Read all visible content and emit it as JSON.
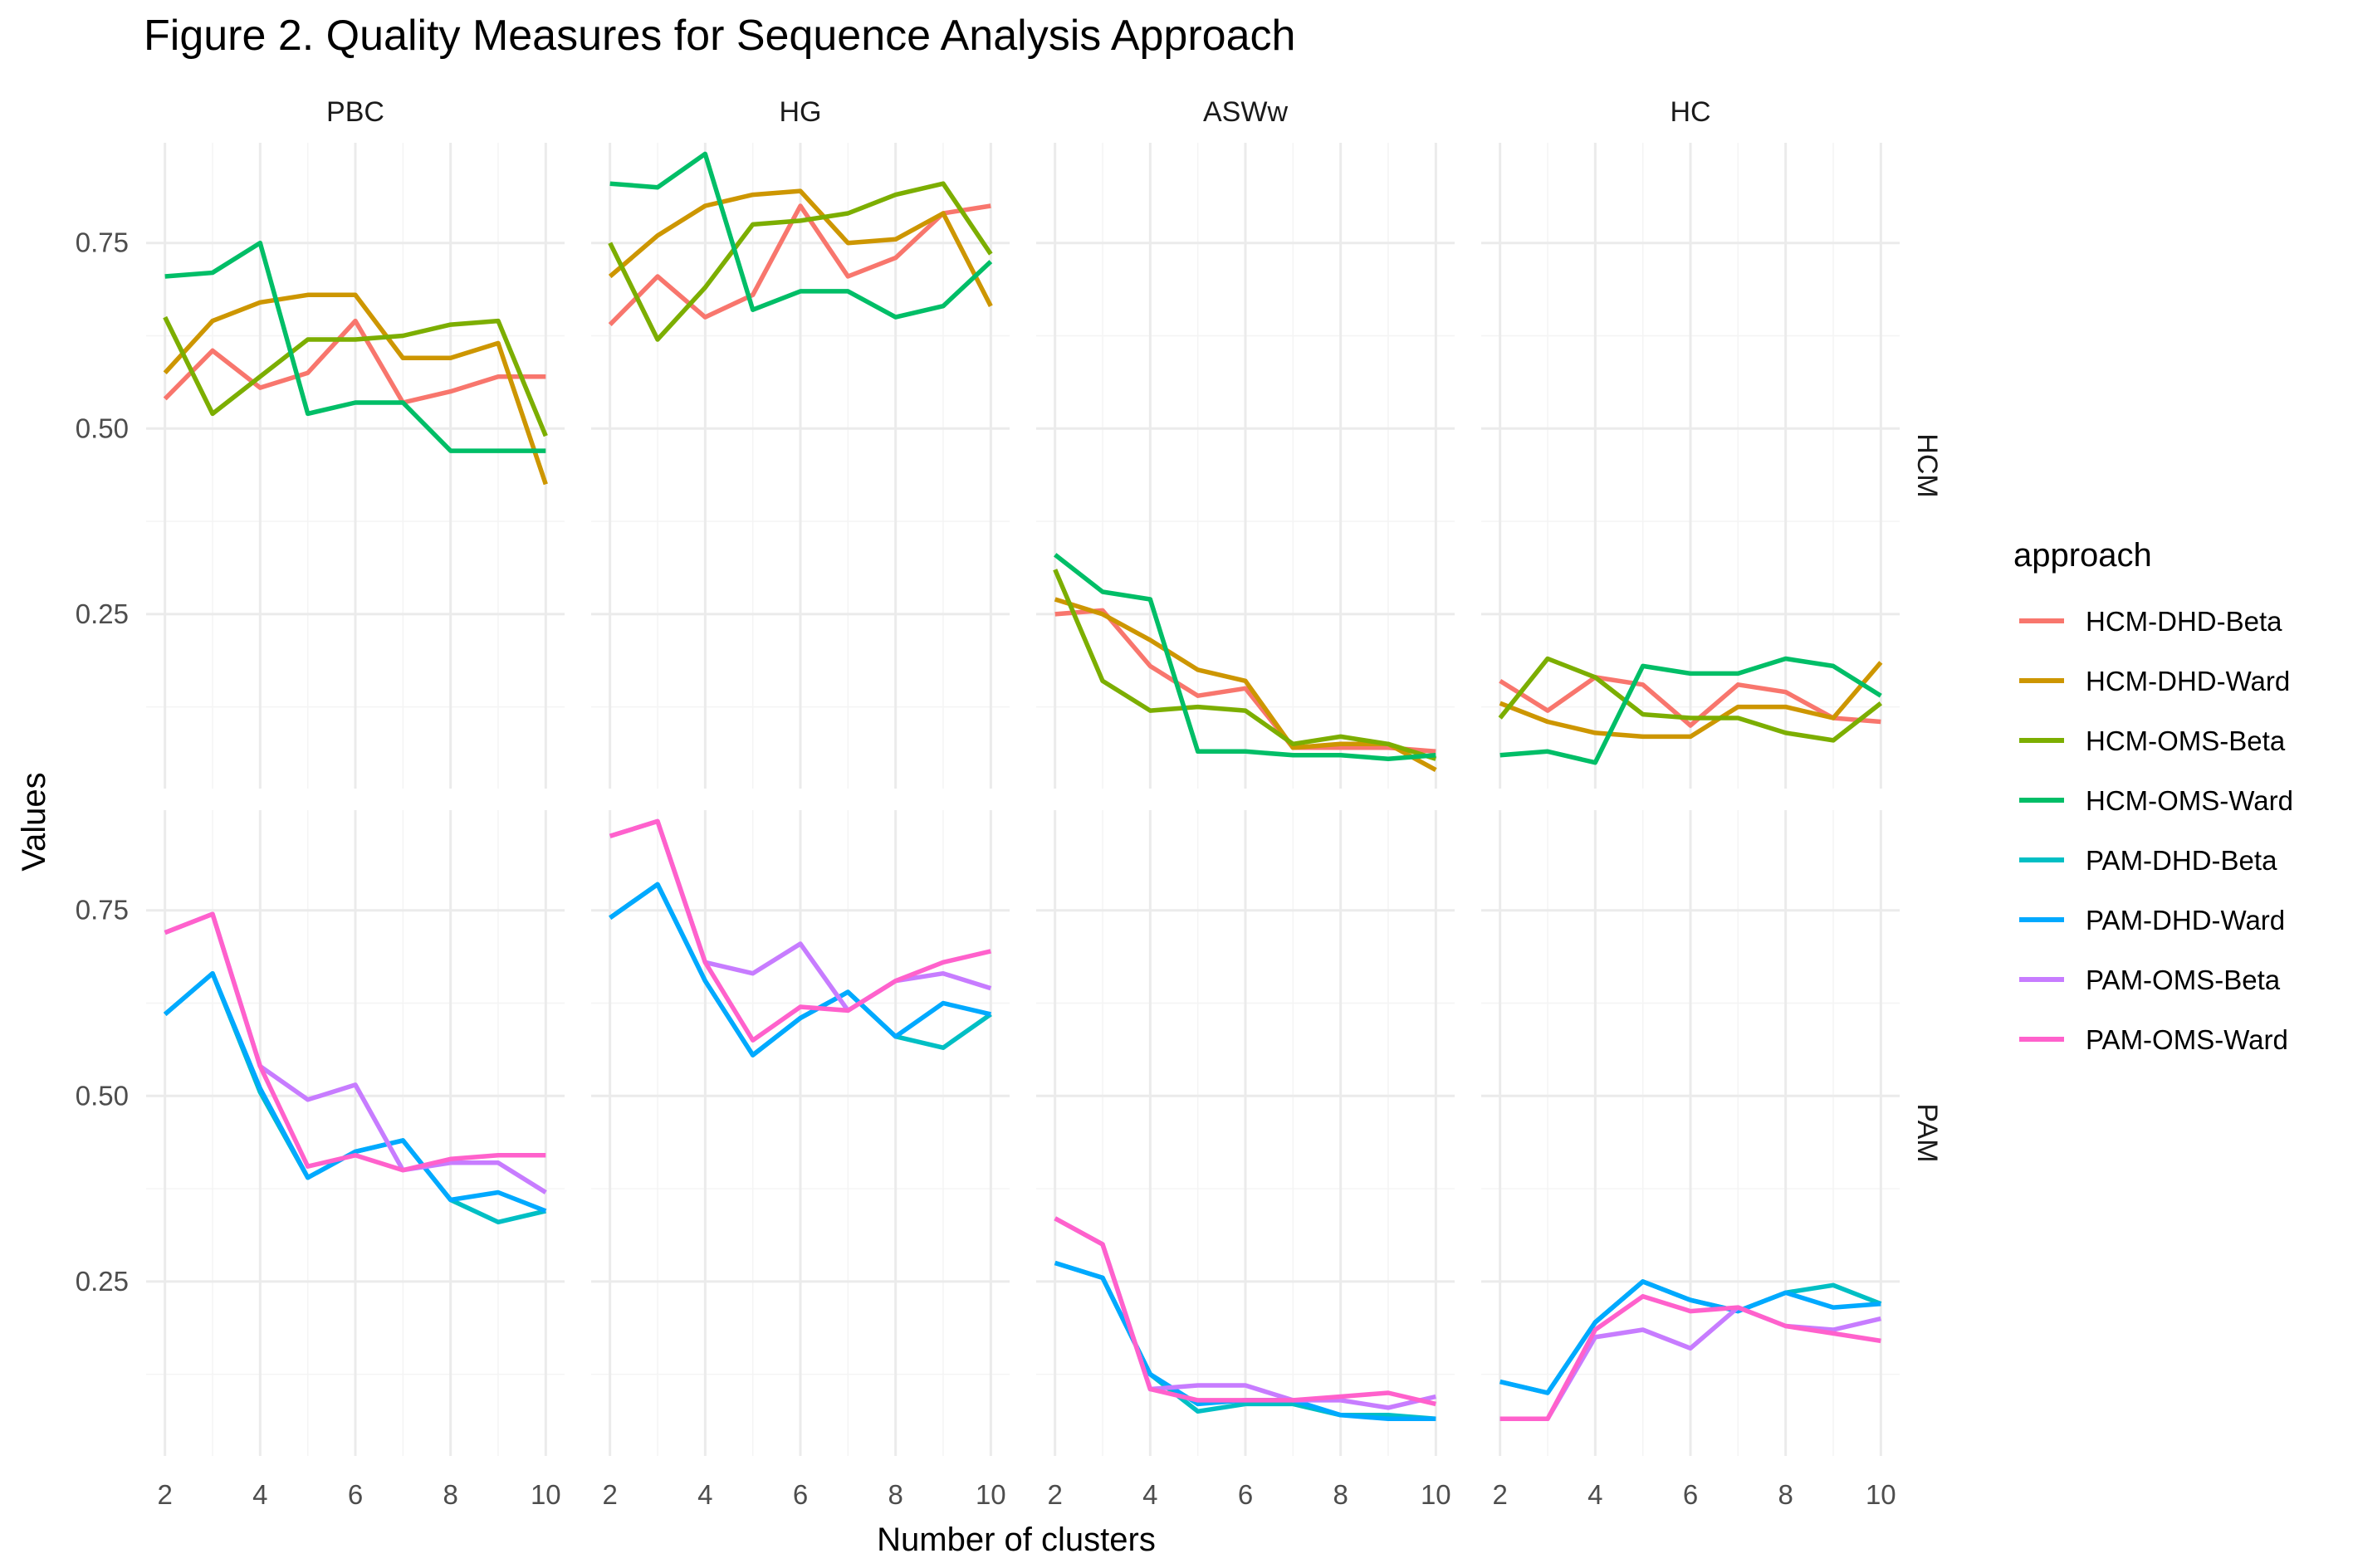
{
  "chart_data": {
    "type": "line",
    "title": "Figure 2. Quality Measures for Sequence Analysis Approach",
    "xlabel": "Number of clusters",
    "ylabel": "Values",
    "facet_cols": [
      "PBC",
      "HG",
      "ASWw",
      "HC"
    ],
    "facet_rows": [
      "HCM",
      "PAM"
    ],
    "x": [
      2,
      3,
      4,
      5,
      6,
      7,
      8,
      9,
      10
    ],
    "x_ticks": [
      "2",
      "4",
      "6",
      "8",
      "10"
    ],
    "y_ticks": [
      "0.25",
      "0.50",
      "0.75"
    ],
    "xlim": [
      2,
      10
    ],
    "ylim": [
      0.015,
      0.885
    ],
    "grid": true,
    "legend_title": "approach",
    "legend_position": "right",
    "series": [
      {
        "name": "HCM-DHD-Beta",
        "color": "#F8766D"
      },
      {
        "name": "HCM-DHD-Ward",
        "color": "#CD9600"
      },
      {
        "name": "HCM-OMS-Beta",
        "color": "#7CAE00"
      },
      {
        "name": "HCM-OMS-Ward",
        "color": "#00BE67"
      },
      {
        "name": "PAM-DHD-Beta",
        "color": "#00BFC4"
      },
      {
        "name": "PAM-DHD-Ward",
        "color": "#00A9FF"
      },
      {
        "name": "PAM-OMS-Beta",
        "color": "#C77CFF"
      },
      {
        "name": "PAM-OMS-Ward",
        "color": "#FF61CC"
      }
    ],
    "panels": {
      "HCM": {
        "PBC": {
          "HCM-DHD-Beta": [
            0.54,
            0.605,
            0.555,
            0.575,
            0.645,
            0.535,
            0.55,
            0.57,
            0.57
          ],
          "HCM-DHD-Ward": [
            0.575,
            0.645,
            0.67,
            0.68,
            0.68,
            0.595,
            0.595,
            0.615,
            0.425
          ],
          "HCM-OMS-Beta": [
            0.65,
            0.52,
            0.57,
            0.62,
            0.62,
            0.625,
            0.64,
            0.645,
            0.49
          ],
          "HCM-OMS-Ward": [
            0.705,
            0.71,
            0.75,
            0.52,
            0.535,
            0.535,
            0.47,
            0.47,
            0.47
          ]
        },
        "HG": {
          "HCM-DHD-Beta": [
            0.64,
            0.705,
            0.65,
            0.68,
            0.8,
            0.705,
            0.73,
            0.79,
            0.8
          ],
          "HCM-DHD-Ward": [
            0.705,
            0.76,
            0.8,
            0.815,
            0.82,
            0.75,
            0.755,
            0.79,
            0.665
          ],
          "HCM-OMS-Beta": [
            0.75,
            0.62,
            0.69,
            0.775,
            0.78,
            0.79,
            0.815,
            0.83,
            0.735
          ],
          "HCM-OMS-Ward": [
            0.83,
            0.825,
            0.87,
            0.66,
            0.685,
            0.685,
            0.65,
            0.665,
            0.725
          ]
        },
        "ASWw": {
          "HCM-DHD-Beta": [
            0.25,
            0.255,
            0.18,
            0.14,
            0.15,
            0.07,
            0.07,
            0.07,
            0.065
          ],
          "HCM-DHD-Ward": [
            0.27,
            0.25,
            0.215,
            0.175,
            0.16,
            0.07,
            0.075,
            0.075,
            0.04
          ],
          "HCM-OMS-Beta": [
            0.31,
            0.16,
            0.12,
            0.125,
            0.12,
            0.075,
            0.085,
            0.075,
            0.055
          ],
          "HCM-OMS-Ward": [
            0.33,
            0.28,
            0.27,
            0.065,
            0.065,
            0.06,
            0.06,
            0.055,
            0.06
          ]
        },
        "HC": {
          "HCM-DHD-Beta": [
            0.16,
            0.12,
            0.165,
            0.155,
            0.1,
            0.155,
            0.145,
            0.11,
            0.105
          ],
          "HCM-DHD-Ward": [
            0.13,
            0.105,
            0.09,
            0.085,
            0.085,
            0.125,
            0.125,
            0.11,
            0.185
          ],
          "HCM-OMS-Beta": [
            0.11,
            0.19,
            0.165,
            0.115,
            0.11,
            0.11,
            0.09,
            0.08,
            0.13
          ],
          "HCM-OMS-Ward": [
            0.06,
            0.065,
            0.05,
            0.18,
            0.17,
            0.17,
            0.19,
            0.18,
            0.14
          ]
        }
      },
      "PAM": {
        "PBC": {
          "PAM-DHD-Beta": [
            0.61,
            0.665,
            0.505,
            0.39,
            0.425,
            0.44,
            0.36,
            0.33,
            0.345
          ],
          "PAM-DHD-Ward": [
            0.61,
            0.665,
            0.51,
            0.39,
            0.425,
            0.44,
            0.36,
            0.37,
            0.345
          ],
          "PAM-OMS-Beta": [
            0.72,
            0.745,
            0.54,
            0.495,
            0.515,
            0.4,
            0.41,
            0.41,
            0.37
          ],
          "PAM-OMS-Ward": [
            0.72,
            0.745,
            0.54,
            0.405,
            0.42,
            0.4,
            0.415,
            0.42,
            0.42
          ]
        },
        "HG": {
          "PAM-DHD-Beta": [
            0.74,
            0.785,
            0.655,
            0.555,
            0.605,
            0.64,
            0.58,
            0.565,
            0.61
          ],
          "PAM-DHD-Ward": [
            0.74,
            0.785,
            0.655,
            0.555,
            0.605,
            0.64,
            0.58,
            0.625,
            0.61
          ],
          "PAM-OMS-Beta": [
            0.85,
            0.87,
            0.68,
            0.665,
            0.705,
            0.615,
            0.655,
            0.665,
            0.645
          ],
          "PAM-OMS-Ward": [
            0.85,
            0.87,
            0.68,
            0.575,
            0.62,
            0.615,
            0.655,
            0.68,
            0.695
          ]
        },
        "ASWw": {
          "PAM-DHD-Beta": [
            0.275,
            0.255,
            0.125,
            0.075,
            0.085,
            0.085,
            0.07,
            0.07,
            0.065
          ],
          "PAM-DHD-Ward": [
            0.275,
            0.255,
            0.125,
            0.085,
            0.09,
            0.09,
            0.07,
            0.065,
            0.065
          ],
          "PAM-OMS-Beta": [
            0.335,
            0.3,
            0.105,
            0.11,
            0.11,
            0.09,
            0.09,
            0.08,
            0.095
          ],
          "PAM-OMS-Ward": [
            0.335,
            0.3,
            0.105,
            0.09,
            0.09,
            0.09,
            0.095,
            0.1,
            0.085
          ]
        },
        "HC": {
          "PAM-DHD-Beta": [
            0.115,
            0.1,
            0.195,
            0.25,
            0.225,
            0.21,
            0.235,
            0.245,
            0.22
          ],
          "PAM-DHD-Ward": [
            0.115,
            0.1,
            0.195,
            0.25,
            0.225,
            0.21,
            0.235,
            0.215,
            0.22
          ],
          "PAM-OMS-Beta": [
            0.065,
            0.065,
            0.175,
            0.185,
            0.16,
            0.215,
            0.19,
            0.185,
            0.2
          ],
          "PAM-OMS-Ward": [
            0.065,
            0.065,
            0.185,
            0.23,
            0.21,
            0.215,
            0.19,
            0.18,
            0.17
          ]
        }
      }
    }
  }
}
